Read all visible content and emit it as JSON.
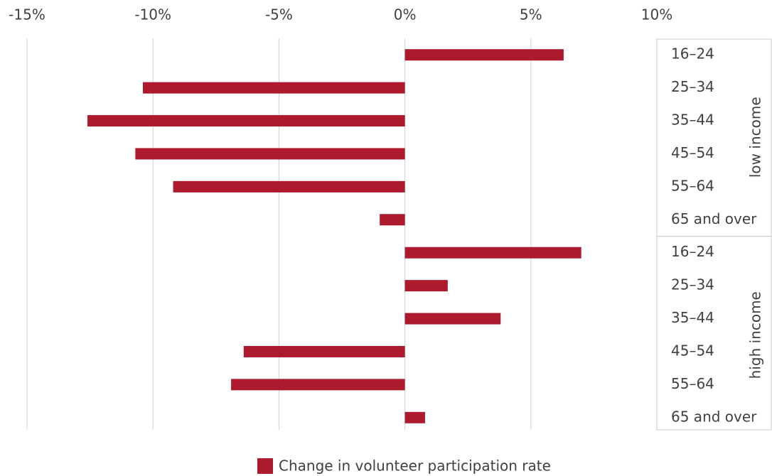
{
  "chart_data": {
    "type": "bar",
    "orientation": "horizontal",
    "categories": [
      "16–24",
      "25–34",
      "35–44",
      "45–54",
      "55–64",
      "65 and over",
      "16–24",
      "25–34",
      "35–44",
      "45–54",
      "55–64",
      "65 and over"
    ],
    "category_groups": [
      {
        "name": "low income",
        "size": 6
      },
      {
        "name": "high income",
        "size": 6
      }
    ],
    "series": [
      {
        "name": "Change in volunteer participation rate",
        "color": "#ad1a2e",
        "values": [
          6.3,
          -10.4,
          -12.6,
          -10.7,
          -9.2,
          -1.0,
          7.0,
          1.7,
          3.8,
          -6.4,
          -6.9,
          0.8
        ]
      }
    ],
    "xlim": [
      -15,
      10
    ],
    "xticks": [
      {
        "value": -15,
        "label": "-15%"
      },
      {
        "value": -10,
        "label": "-10%"
      },
      {
        "value": -5,
        "label": "-5%"
      },
      {
        "value": 0,
        "label": "0%"
      },
      {
        "value": 5,
        "label": "5%"
      },
      {
        "value": 10,
        "label": "10%"
      }
    ],
    "grid": true,
    "legend": "bottom"
  }
}
